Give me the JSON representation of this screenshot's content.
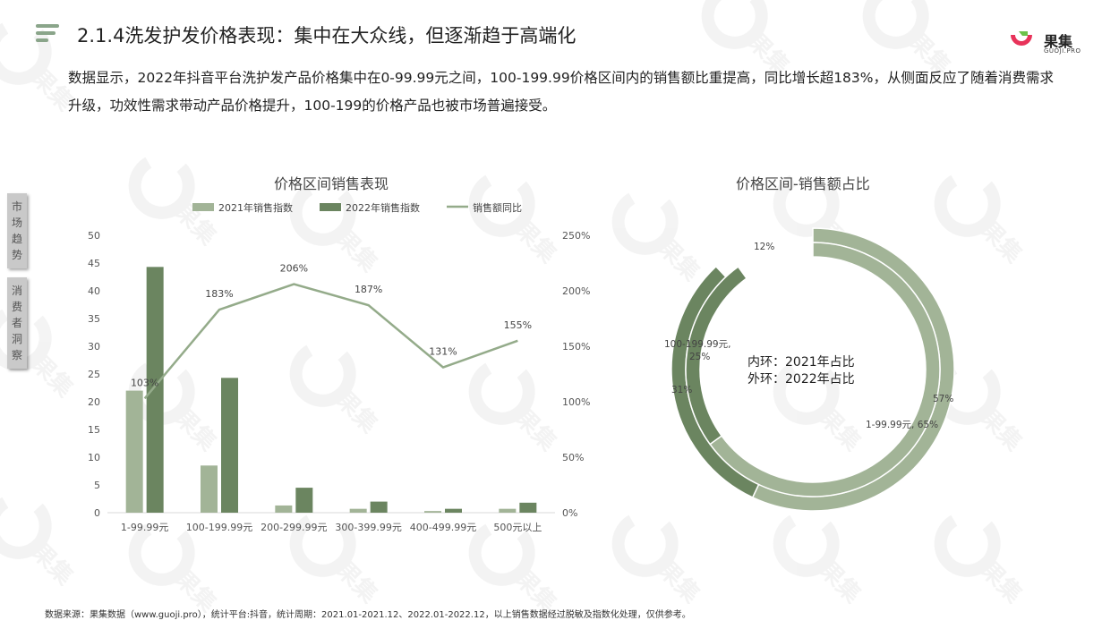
{
  "header": {
    "title": "2.1.4洗发护发价格表现：集中在大众线，但逐渐趋于高端化",
    "logo_text": "果集",
    "logo_sub": "GUOJI.PRO"
  },
  "intro": {
    "text": "数据显示，2022年抖音平台洗护发产品价格集中在0-99.99元之间，100-199.99价格区间内的销售额比重提高，同比增长超183%，从侧面反应了随着消费需求升级，功效性需求带动产品价格提升，100-199的价格产品也被市场普遍接受。"
  },
  "side_tabs": [
    "市场趋势",
    "消费者洞察"
  ],
  "watermark_text": "果集",
  "footnote": "数据来源：果集数据（www.guoji.pro），统计平台:抖音，统计周期：2021.01-2021.12、2022.01-2022.12，以上销售数据经过脱敏及指数化处理，仅供参考。",
  "colors": {
    "light_green": "#a2b497",
    "dark_green": "#6b8560",
    "line_green": "#94ab8a",
    "accent_red": "#e8335a"
  },
  "chart_data": [
    {
      "type": "bar",
      "title": "价格区间销售表现",
      "categories": [
        "1-99.99元",
        "100-199.99元",
        "200-299.99元",
        "300-399.99元",
        "400-499.99元",
        "500元以上"
      ],
      "series": [
        {
          "name": "2021年销售指数",
          "type": "bar",
          "axis": "left",
          "color": "#a2b497",
          "values": [
            22,
            8.5,
            1.3,
            0.7,
            0.3,
            0.7
          ]
        },
        {
          "name": "2022年销售指数",
          "type": "bar",
          "axis": "left",
          "color": "#6b8560",
          "values": [
            44.3,
            24.3,
            4.5,
            2.0,
            0.7,
            1.8
          ]
        },
        {
          "name": "销售额同比",
          "type": "line",
          "axis": "right",
          "color": "#94ab8a",
          "values": [
            103,
            183,
            206,
            187,
            131,
            155
          ],
          "labels": [
            "103%",
            "183%",
            "206%",
            "187%",
            "131%",
            "155%"
          ]
        }
      ],
      "ylim": [
        0,
        50
      ],
      "yticks": [
        "0",
        "5",
        "10",
        "15",
        "20",
        "25",
        "30",
        "35",
        "40",
        "45",
        "50"
      ],
      "y2lim": [
        0,
        250
      ],
      "y2ticks": [
        "0%",
        "50%",
        "100%",
        "150%",
        "200%",
        "250%"
      ],
      "legend": "top",
      "grid": false
    },
    {
      "type": "pie",
      "title": "价格区间-销售额占比",
      "center_text": [
        "内环：2021年占比",
        "外环：2022年占比"
      ],
      "rings": [
        {
          "name": "内环",
          "year": "2021",
          "color": "#6b8560",
          "segments": [
            {
              "label": "1-99.99元",
              "value": 65,
              "text": "1-99.99元, 65%",
              "color": "#a2b497"
            },
            {
              "label": "100-199.99元",
              "value": 25,
              "text": "100-199.99元,\n25%",
              "color": "#6b8560"
            },
            {
              "label": "其他",
              "value": 10,
              "text": "",
              "color": "#ffffff"
            }
          ]
        },
        {
          "name": "外环",
          "year": "2022",
          "color": "#a2b497",
          "segments": [
            {
              "label": "1-99.99元",
              "value": 57,
              "text": "57%",
              "color": "#a2b497"
            },
            {
              "label": "100-199.99元",
              "value": 31,
              "text": "31%",
              "color": "#6b8560"
            },
            {
              "label": "其他",
              "value": 12,
              "text": "12%",
              "color": "#ffffff"
            }
          ]
        }
      ],
      "legend": "none"
    }
  ]
}
